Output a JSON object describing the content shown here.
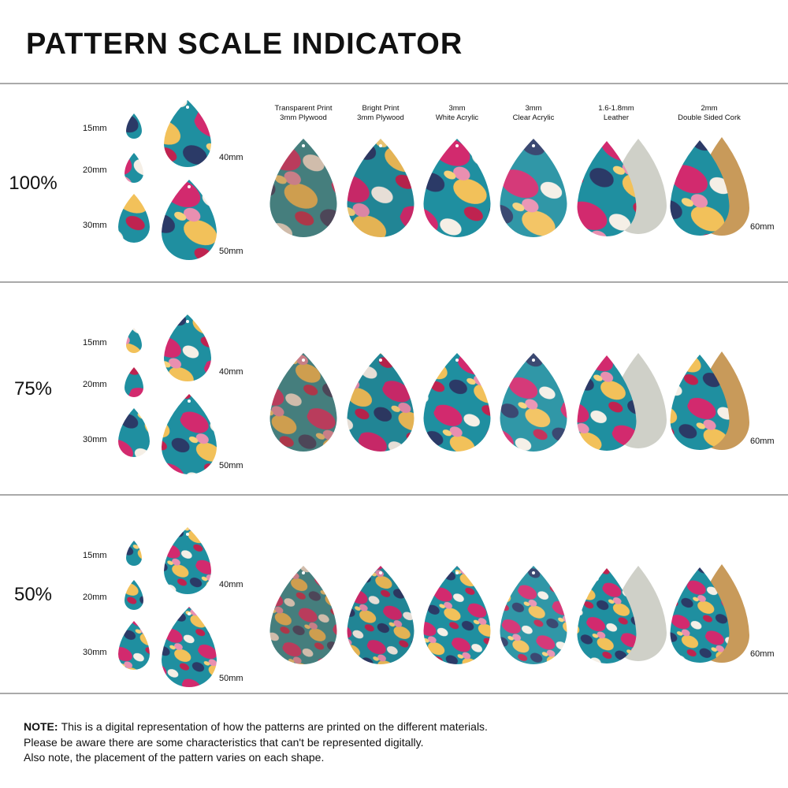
{
  "title": "PATTERN SCALE INDICATOR",
  "materials": [
    {
      "line1": "Transparent Print",
      "line2": "3mm Plywood"
    },
    {
      "line1": "Bright Print",
      "line2": "3mm Plywood"
    },
    {
      "line1": "3mm",
      "line2": "White Acrylic"
    },
    {
      "line1": "3mm",
      "line2": "Clear Acrylic"
    },
    {
      "line1": "1.6-1.8mm",
      "line2": "Leather"
    },
    {
      "line1": "2mm",
      "line2": "Double Sided Cork"
    }
  ],
  "sections": [
    {
      "scale": "100%",
      "sizes": [
        "15mm",
        "20mm",
        "30mm",
        "40mm",
        "50mm"
      ],
      "material_size": "60mm"
    },
    {
      "scale": "75%",
      "sizes": [
        "15mm",
        "20mm",
        "30mm",
        "40mm",
        "50mm"
      ],
      "material_size": "60mm"
    },
    {
      "scale": "50%",
      "sizes": [
        "15mm",
        "20mm",
        "30mm",
        "40mm",
        "50mm"
      ],
      "material_size": "60mm"
    }
  ],
  "note": {
    "label": "NOTE:",
    "lines": [
      "This is a digital representation of how the patterns are printed on the different materials.",
      "Please be aware there are some characteristics that can't be represented digitally.",
      "Also note, the placement of the pattern varies on each shape."
    ]
  }
}
